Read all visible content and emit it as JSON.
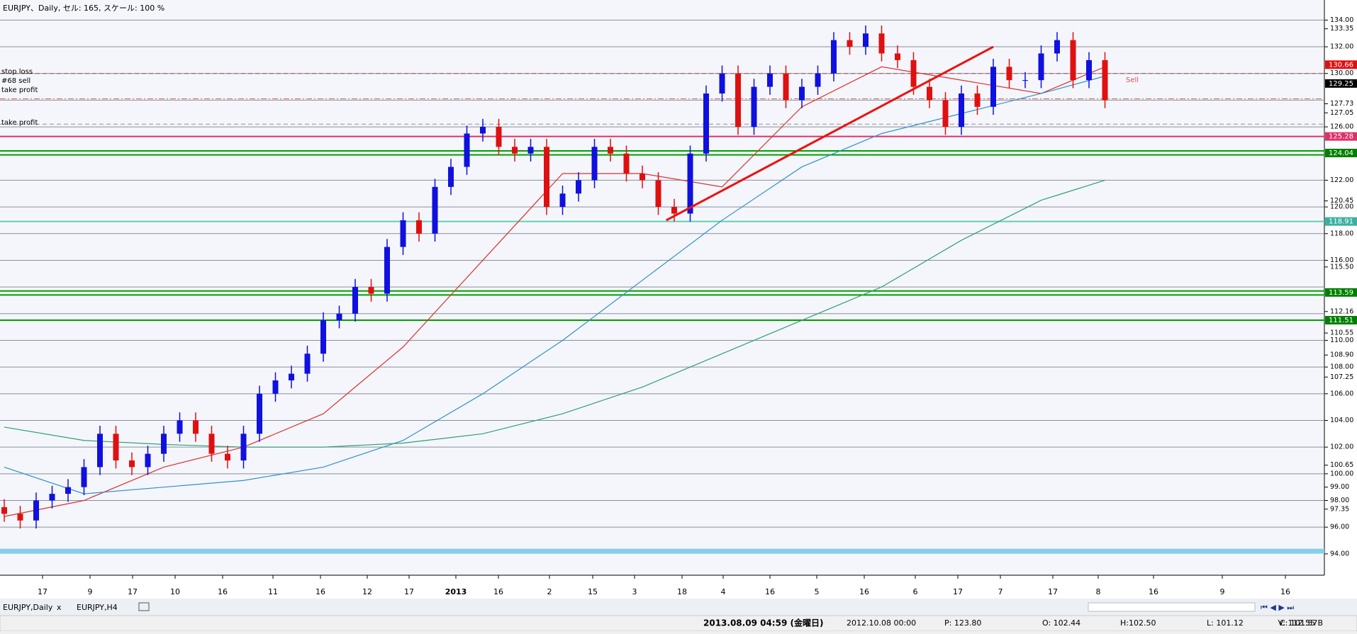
{
  "window_title": "EURJPY、Daily, セル: 165, スケール: 100 %",
  "chart_data": {
    "type": "candlestick",
    "ylim": [
      92.4,
      135.4
    ],
    "yticks": [
      {
        "value": 134,
        "label": "134.00"
      },
      {
        "value": 133.35,
        "label": "133.35"
      },
      {
        "value": 132,
        "label": "132.00"
      },
      {
        "value": 130,
        "label": "130.00"
      },
      {
        "value": 127.73,
        "label": "127.73"
      },
      {
        "value": 127.05,
        "label": "127.05"
      },
      {
        "value": 126,
        "label": "126.00"
      },
      {
        "value": 122,
        "label": "122.00"
      },
      {
        "value": 120.45,
        "label": "120.45"
      },
      {
        "value": 120,
        "label": "120.00"
      },
      {
        "value": 118,
        "label": "118.00"
      },
      {
        "value": 116,
        "label": "116.00"
      },
      {
        "value": 115.5,
        "label": "115.50"
      },
      {
        "value": 112.16,
        "label": "112.16"
      },
      {
        "value": 110.55,
        "label": "110.55"
      },
      {
        "value": 110,
        "label": "110.00"
      },
      {
        "value": 108.9,
        "label": "108.90"
      },
      {
        "value": 108,
        "label": "108.00"
      },
      {
        "value": 107.25,
        "label": "107.25"
      },
      {
        "value": 106,
        "label": "106.00"
      },
      {
        "value": 104,
        "label": "104.00"
      },
      {
        "value": 102,
        "label": "102.00"
      },
      {
        "value": 100.65,
        "label": "100.65"
      },
      {
        "value": 100,
        "label": "100.00"
      },
      {
        "value": 99,
        "label": "99.00"
      },
      {
        "value": 98,
        "label": "98.00"
      },
      {
        "value": 97.35,
        "label": "97.35"
      },
      {
        "value": 96,
        "label": "96.00"
      },
      {
        "value": 94,
        "label": "94.00"
      }
    ],
    "gridlines": [
      134,
      132,
      130,
      128,
      126,
      122,
      120,
      118,
      116,
      114,
      112,
      110,
      108,
      106,
      104,
      102,
      100,
      98,
      96
    ],
    "price_markers": [
      {
        "value": 130.66,
        "label": "130.66",
        "color": "#e01010"
      },
      {
        "value": 129.25,
        "label": "129.25",
        "color": "#000000"
      },
      {
        "value": 125.28,
        "label": "125.28",
        "color": "#e0306a"
      },
      {
        "value": 124.04,
        "label": "124.04",
        "color": "#008000"
      },
      {
        "value": 118.91,
        "label": "118.91",
        "color": "#3cb0a0"
      },
      {
        "value": 113.59,
        "label": "113.59",
        "color": "#008000"
      },
      {
        "value": 111.51,
        "label": "111.51",
        "color": "#008000"
      }
    ],
    "levels": [
      {
        "value": 130.0,
        "color": "#a05050",
        "style": "dashed"
      },
      {
        "value": 128.1,
        "color": "#d06060",
        "style": "dashdot"
      },
      {
        "value": 126.2,
        "color": "#909090",
        "style": "dashed"
      },
      {
        "value": 125.28,
        "color": "#e0306a",
        "style": "solid"
      },
      {
        "value": 124.2,
        "color": "#00a000",
        "style": "solid"
      },
      {
        "value": 123.9,
        "color": "#00a000",
        "style": "solid"
      },
      {
        "value": 118.91,
        "color": "#60d0b0",
        "style": "solid"
      },
      {
        "value": 113.7,
        "color": "#00a000",
        "style": "solid"
      },
      {
        "value": 113.4,
        "color": "#00a000",
        "style": "solid"
      },
      {
        "value": 111.51,
        "color": "#00a000",
        "style": "solid"
      },
      {
        "value": 94.2,
        "color": "#87ceeb",
        "style": "thick"
      }
    ],
    "annotations": [
      "stop loss",
      "#68 sell",
      "take profit",
      "take profit",
      "Sell"
    ],
    "time_labels": [
      "17",
      "9",
      "17",
      "10",
      "16",
      "11",
      "16",
      "12",
      "17",
      "2013",
      "16",
      "2",
      "15",
      "3",
      "18",
      "4",
      "16",
      "5",
      "16",
      "6",
      "17",
      "7",
      "17",
      "8",
      "16",
      "9",
      "16"
    ],
    "up_color": "#1010e0",
    "down_color": "#e01010",
    "open": [
      97.5,
      97,
      96.5,
      98,
      98.5,
      99,
      100.5,
      103,
      101,
      100.5,
      101.5,
      103,
      104,
      103,
      101.5,
      101,
      103,
      106,
      107,
      107.5,
      109,
      111.5,
      112,
      114,
      113.5,
      117,
      119,
      118,
      121.5,
      123,
      125.5,
      126,
      124.5,
      124,
      124.5,
      120,
      121,
      122,
      124.5,
      124,
      122.5,
      122,
      120,
      119.5,
      124,
      128.5,
      130,
      126,
      129,
      130,
      128,
      129,
      130,
      132.5,
      132,
      133,
      131.5,
      131,
      129,
      128,
      126,
      128.5,
      127.5,
      130.5,
      129.5,
      129.5,
      131.5,
      132.5,
      129.5,
      131
    ],
    "high": [
      98.1,
      97.6,
      98.6,
      99.1,
      99.6,
      101.1,
      103.6,
      103.6,
      101.6,
      102.1,
      103.6,
      104.6,
      104.6,
      103.6,
      102.1,
      103.6,
      106.6,
      107.6,
      108.1,
      109.6,
      112.1,
      112.6,
      114.6,
      114.6,
      117.6,
      119.6,
      119.6,
      122.1,
      123.6,
      126.1,
      126.6,
      126.6,
      125.1,
      125.1,
      125.1,
      121.6,
      122.6,
      125.1,
      125.1,
      124.6,
      123.1,
      122.6,
      120.6,
      124.6,
      129.1,
      130.6,
      130.6,
      129.6,
      130.6,
      130.6,
      129.6,
      130.6,
      133.1,
      133.1,
      133.6,
      133.6,
      132.1,
      131.6,
      129.6,
      128.6,
      129.1,
      129.1,
      131.1,
      131.1,
      130.1,
      132.1,
      133.1,
      133.1,
      131.6,
      131.6
    ],
    "low": [
      96.4,
      95.9,
      95.9,
      97.4,
      97.9,
      98.4,
      99.9,
      100.4,
      99.9,
      99.9,
      100.9,
      102.4,
      102.4,
      100.9,
      100.4,
      100.4,
      102.4,
      105.4,
      106.4,
      106.9,
      108.4,
      110.9,
      111.4,
      112.9,
      112.9,
      116.4,
      117.4,
      117.4,
      120.9,
      122.4,
      124.9,
      123.9,
      123.4,
      123.4,
      119.4,
      119.4,
      120.4,
      121.4,
      123.4,
      121.9,
      121.4,
      119.4,
      118.9,
      118.9,
      123.4,
      127.9,
      125.4,
      125.4,
      128.4,
      127.4,
      127.4,
      128.4,
      129.4,
      131.4,
      131.4,
      130.9,
      130.4,
      128.4,
      127.4,
      125.4,
      125.4,
      126.9,
      126.9,
      128.9,
      128.9,
      128.9,
      130.9,
      128.9,
      128.9,
      127.4
    ],
    "close": [
      97,
      96.5,
      98,
      98.5,
      99,
      100.5,
      103,
      101,
      100.5,
      101.5,
      103,
      104,
      103,
      101.5,
      101,
      103,
      106,
      107,
      107.5,
      109,
      111.5,
      112,
      114,
      113.5,
      117,
      119,
      118,
      121.5,
      123,
      125.5,
      126,
      124.5,
      124,
      124.5,
      120,
      121,
      122,
      124.5,
      124,
      122.5,
      122,
      120,
      119.5,
      124,
      128.5,
      130,
      126,
      129,
      130,
      128,
      129,
      130,
      132.5,
      132,
      133,
      131.5,
      131,
      129,
      128,
      126,
      128.5,
      127.5,
      130.5,
      129.5,
      129.5,
      131.5,
      132.5,
      129.5,
      131,
      128
    ],
    "ma_x": [
      0,
      5,
      10,
      15,
      20,
      25,
      30,
      35,
      40,
      45,
      50,
      55,
      60,
      65,
      69
    ],
    "ma_series": [
      {
        "color": "#e03030",
        "values": [
          96.8,
          98,
          100.5,
          102,
          104.5,
          109.5,
          116,
          122.5,
          122.5,
          121.5,
          127.5,
          130.5,
          129.5,
          128.5,
          130.5
        ]
      },
      {
        "color": "#3090d0",
        "values": [
          100.5,
          98.5,
          99,
          99.5,
          100.5,
          102.5,
          106,
          110,
          114.5,
          119,
          123,
          125.5,
          127,
          128.5,
          129.8
        ]
      },
      {
        "color": "#30a070",
        "values": [
          103.5,
          102.5,
          102.2,
          102,
          102,
          102.3,
          103,
          104.5,
          106.5,
          109,
          111.5,
          114,
          117.5,
          120.5,
          122
        ]
      }
    ],
    "trendline": {
      "color": "#ee1010",
      "x": [
        41.5,
        62
      ],
      "values": [
        119,
        132
      ]
    }
  },
  "tabs": [
    "EURJPY,Daily",
    "x",
    "EURJPY,H4"
  ],
  "status": [
    "2013.08.09 04:59 (金曜日)",
    "2012.10.08 00:00",
    "P: 123.80",
    "O: 102.44",
    "H:102.50",
    "L: 101.12",
    "C: 101.57",
    "V: 112.55 B"
  ]
}
